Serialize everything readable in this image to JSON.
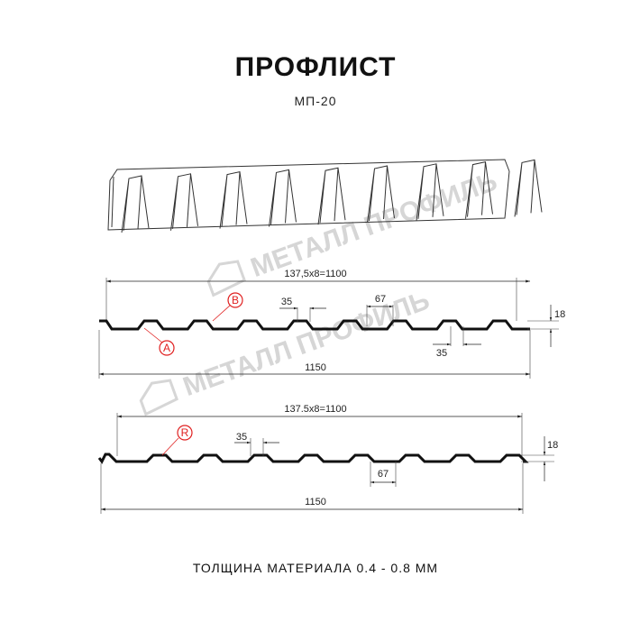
{
  "header": {
    "title": "ПРОФЛИСТ",
    "subtitle": "МП-20"
  },
  "watermark": {
    "text": "МЕТАЛЛ ПРОФИЛЬ"
  },
  "profile_top": {
    "pitch_label": "137,5x8=1100",
    "width_label": "1150",
    "rib_top_label": "35",
    "rib_bottom_label": "35",
    "valley_label": "67",
    "height_label": "18",
    "marker_a": "A",
    "marker_b": "B"
  },
  "profile_bottom": {
    "pitch_label": "137.5x8=1100",
    "width_label": "1150",
    "rib_top_label": "35",
    "valley_label": "67",
    "height_label": "18",
    "marker_r": "R"
  },
  "footer": {
    "text": "ТОЛЩИНА МАТЕРИАЛА 0.4 - 0.8 ММ"
  },
  "colors": {
    "line": "#111111",
    "marker": "#e02020",
    "watermark": "#d6d6d6"
  }
}
